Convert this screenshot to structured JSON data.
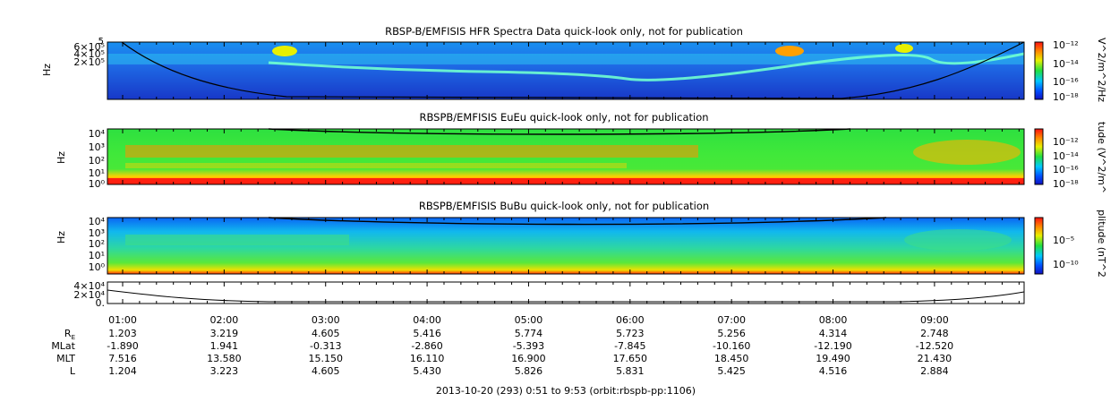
{
  "chart_data": [
    {
      "type": "heatmap",
      "title": "RBSP-B/EMFISIS  HFR Spectra Data quick-look only, not for publication",
      "ylabel": "Hz",
      "y_ticks": [
        {
          "label": "6×10⁵",
          "value": 600000
        },
        {
          "label": "4×10⁵",
          "value": 400000
        },
        {
          "label": "2×10⁵",
          "value": 200000
        }
      ],
      "y_top_label": "5",
      "colorbar": {
        "label": "V^2/m^2/Hz",
        "ticks": [
          {
            "label": "10⁻¹²",
            "exp": -12
          },
          {
            "label": "10⁻¹⁴",
            "exp": -14
          },
          {
            "label": "10⁻¹⁶",
            "exp": -16
          },
          {
            "label": "10⁻¹⁸",
            "exp": -18
          }
        ]
      }
    },
    {
      "type": "heatmap",
      "title": "RBSPB/EMFISIS  EuEu quick-look only, not for publication",
      "ylabel": "Hz",
      "y_ticks": [
        {
          "label": "10⁴",
          "exp": 4
        },
        {
          "label": "10³",
          "exp": 3
        },
        {
          "label": "10²",
          "exp": 2
        },
        {
          "label": "10¹",
          "exp": 1
        },
        {
          "label": "10⁰",
          "exp": 0
        }
      ],
      "colorbar": {
        "label": "tude (V^2/m^",
        "ticks": [
          {
            "label": "10⁻¹²",
            "exp": -12
          },
          {
            "label": "10⁻¹⁴",
            "exp": -14
          },
          {
            "label": "10⁻¹⁶",
            "exp": -16
          },
          {
            "label": "10⁻¹⁸",
            "exp": -18
          }
        ]
      }
    },
    {
      "type": "heatmap",
      "title": "RBSPB/EMFISIS  BuBu quick-look only, not for publication",
      "ylabel": "Hz",
      "y_ticks": [
        {
          "label": "10⁴",
          "exp": 4
        },
        {
          "label": "10³",
          "exp": 3
        },
        {
          "label": "10²",
          "exp": 2
        },
        {
          "label": "10¹",
          "exp": 1
        },
        {
          "label": "10⁰",
          "exp": 0
        }
      ],
      "colorbar": {
        "label": "plitude (nT^2",
        "ticks": [
          {
            "label": "10⁻⁵",
            "exp": -5
          },
          {
            "label": "10⁻¹⁰",
            "exp": -10
          }
        ]
      }
    },
    {
      "type": "line",
      "y_ticks": [
        {
          "label": "4×10⁴",
          "value": 40000
        },
        {
          "label": "2×10⁴",
          "value": 20000
        },
        {
          "label": "0.",
          "value": 0
        }
      ],
      "ylim": [
        0,
        50000
      ]
    }
  ],
  "time_axis": {
    "start_hours": 0.85,
    "end_hours": 9.883,
    "ticks": [
      "01:00",
      "02:00",
      "03:00",
      "04:00",
      "05:00",
      "06:00",
      "07:00",
      "08:00",
      "09:00"
    ],
    "tick_hours": [
      1,
      2,
      3,
      4,
      5,
      6,
      7,
      8,
      9
    ]
  },
  "ephemeris": {
    "rows": [
      {
        "label": "R",
        "subscript": "E",
        "values": [
          "1.203",
          "3.219",
          "4.605",
          "5.416",
          "5.774",
          "5.723",
          "5.256",
          "4.314",
          "2.748"
        ]
      },
      {
        "label": "MLat",
        "subscript": "",
        "values": [
          "-1.890",
          "1.941",
          "-0.313",
          "-2.860",
          "-5.393",
          "-7.845",
          "-10.160",
          "-12.190",
          "-12.520"
        ]
      },
      {
        "label": "MLT",
        "subscript": "",
        "values": [
          "7.516",
          "13.580",
          "15.150",
          "16.110",
          "16.900",
          "17.650",
          "18.450",
          "19.490",
          "21.430"
        ]
      },
      {
        "label": "L",
        "subscript": "",
        "values": [
          "1.204",
          "3.223",
          "4.605",
          "5.430",
          "5.826",
          "5.831",
          "5.425",
          "4.516",
          "2.884"
        ]
      }
    ]
  },
  "footer": "2013-10-20 (293) 0:51 to 9:53 (orbit:rbspb-pp:1106)"
}
